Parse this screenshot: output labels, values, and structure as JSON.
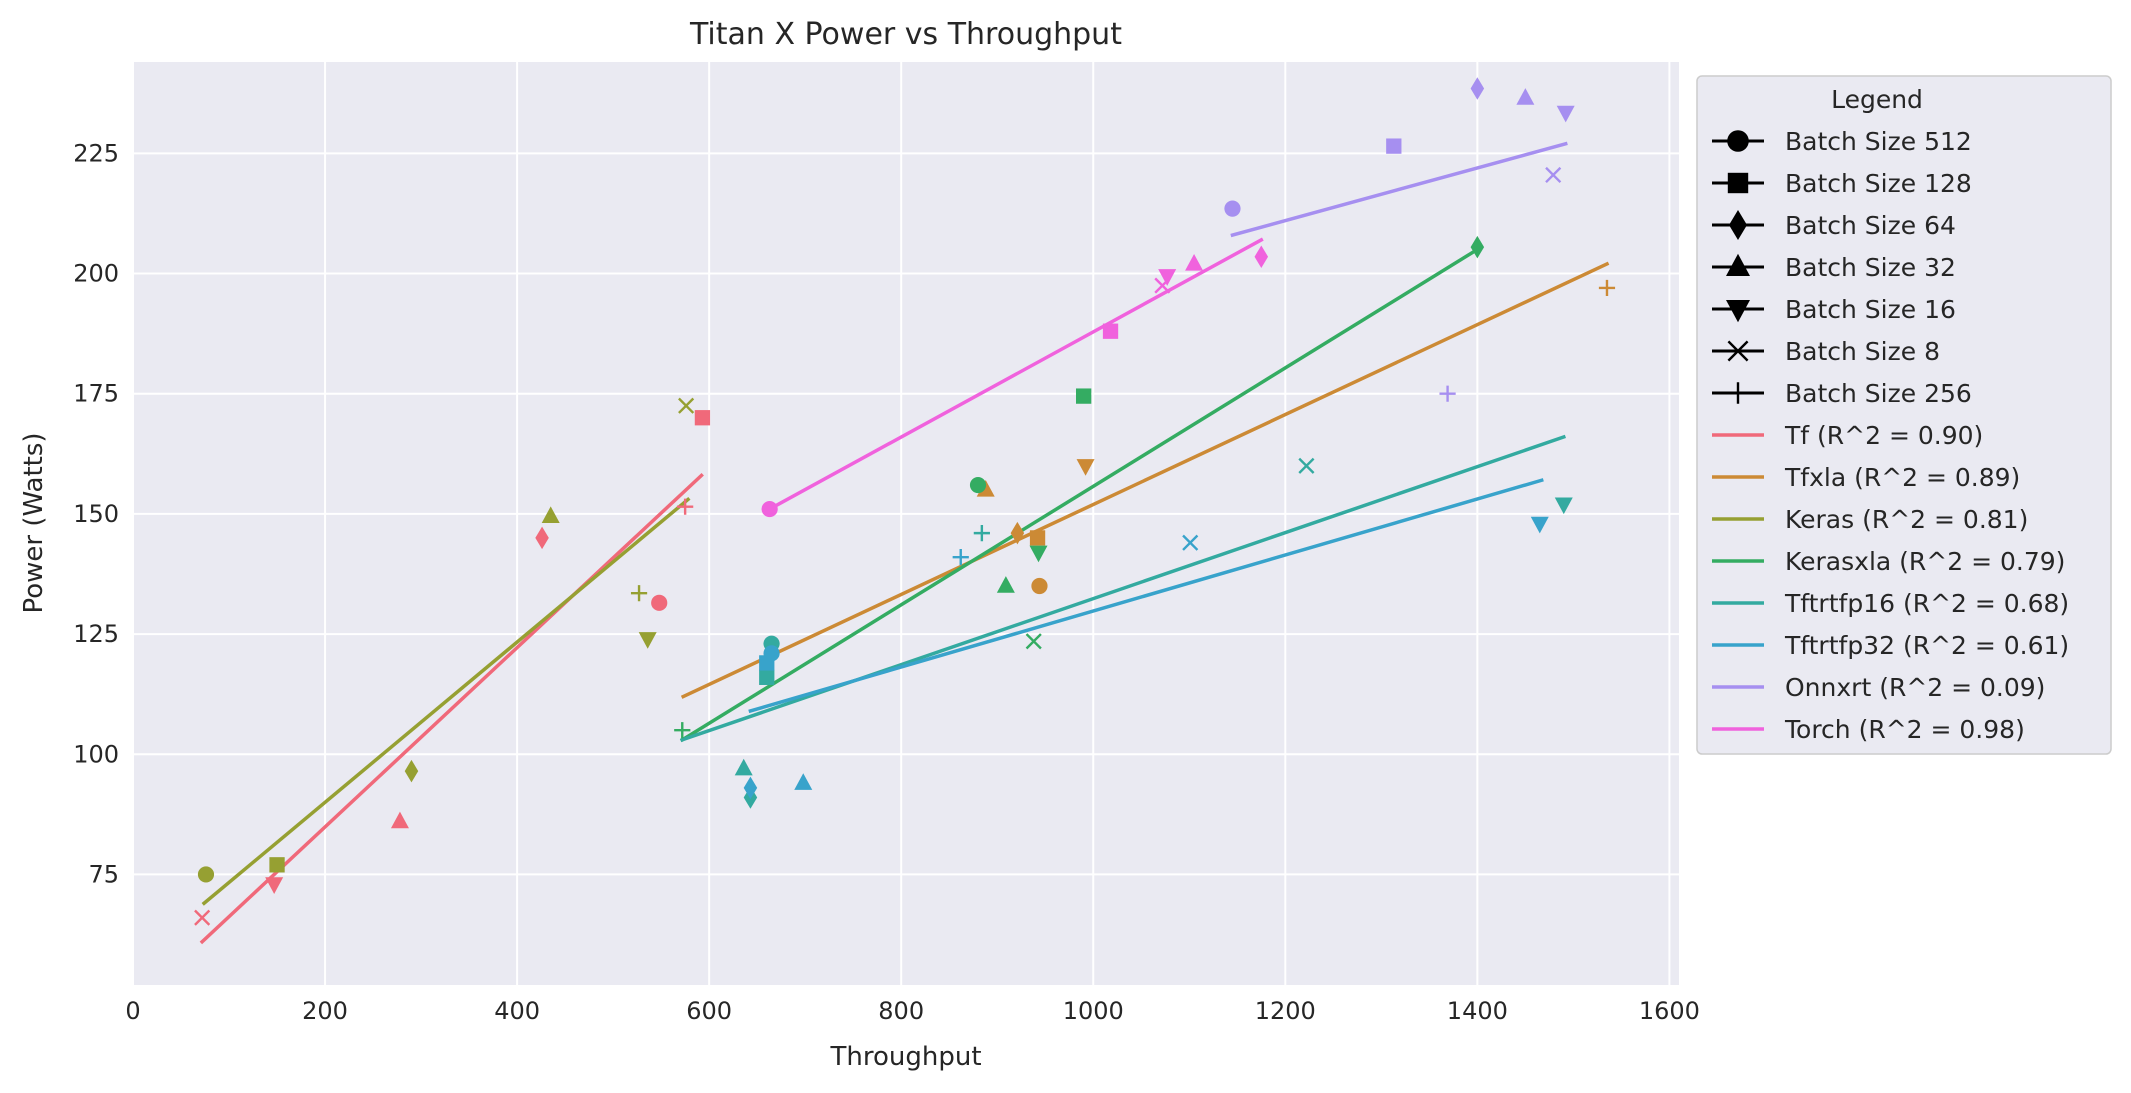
{
  "chart_data": {
    "type": "scatter",
    "title": "Titan X Power vs Throughput",
    "xlabel": "Throughput",
    "ylabel": "Power (Watts)",
    "xlim": [
      0,
      1610
    ],
    "ylim": [
      52,
      244
    ],
    "xticks": [
      0,
      200,
      400,
      600,
      800,
      1000,
      1200,
      1400,
      1600
    ],
    "yticks": [
      75,
      100,
      125,
      150,
      175,
      200,
      225
    ],
    "grid": true,
    "legend": {
      "title": "Legend",
      "placement": "outside-right",
      "marker_entries": [
        {
          "label": "Batch Size 512",
          "marker": "circle"
        },
        {
          "label": "Batch Size 128",
          "marker": "square"
        },
        {
          "label": "Batch Size 64",
          "marker": "diamond"
        },
        {
          "label": "Batch Size 32",
          "marker": "triangle-up"
        },
        {
          "label": "Batch Size 16",
          "marker": "triangle-down"
        },
        {
          "label": "Batch Size 8",
          "marker": "x"
        },
        {
          "label": "Batch Size 256",
          "marker": "plus"
        }
      ]
    },
    "series": [
      {
        "name": "Tf (R^2 = 0.90)",
        "color": "#f0697a",
        "fit": [
          [
            72,
            61
          ],
          [
            592,
            158
          ]
        ],
        "points": [
          {
            "x": 548,
            "y": 131.5,
            "marker": "circle"
          },
          {
            "x": 593,
            "y": 170,
            "marker": "square"
          },
          {
            "x": 426,
            "y": 145,
            "marker": "diamond"
          },
          {
            "x": 278,
            "y": 86,
            "marker": "triangle-up"
          },
          {
            "x": 147,
            "y": 73,
            "marker": "triangle-down"
          },
          {
            "x": 72,
            "y": 66,
            "marker": "x"
          },
          {
            "x": 575,
            "y": 151.5,
            "marker": "plus"
          }
        ]
      },
      {
        "name": "Tfxla (R^2 = 0.89)",
        "color": "#cc8a35",
        "fit": [
          [
            573,
            112
          ],
          [
            1535,
            202
          ]
        ],
        "points": [
          {
            "x": 944,
            "y": 135,
            "marker": "circle"
          },
          {
            "x": 942,
            "y": 145,
            "marker": "square"
          },
          {
            "x": 921,
            "y": 146,
            "marker": "diamond"
          },
          {
            "x": 888,
            "y": 155,
            "marker": "triangle-up"
          },
          {
            "x": 992,
            "y": 160,
            "marker": "triangle-down"
          },
          {
            "x": 1535,
            "y": 197,
            "marker": "plus"
          }
        ]
      },
      {
        "name": "Keras (R^2 = 0.81)",
        "color": "#96a032",
        "fit": [
          [
            74,
            69
          ],
          [
            578,
            153
          ]
        ],
        "points": [
          {
            "x": 76,
            "y": 75,
            "marker": "circle"
          },
          {
            "x": 150,
            "y": 77,
            "marker": "square"
          },
          {
            "x": 290,
            "y": 96.5,
            "marker": "diamond"
          },
          {
            "x": 435,
            "y": 149.5,
            "marker": "triangle-up"
          },
          {
            "x": 536,
            "y": 124,
            "marker": "triangle-down"
          },
          {
            "x": 576,
            "y": 172.5,
            "marker": "x"
          },
          {
            "x": 527,
            "y": 133.5,
            "marker": "plus"
          }
        ]
      },
      {
        "name": "Kerasxla (R^2 = 0.79)",
        "color": "#34ac62",
        "fit": [
          [
            572,
            103
          ],
          [
            1400,
            205
          ]
        ],
        "points": [
          {
            "x": 880,
            "y": 156,
            "marker": "circle"
          },
          {
            "x": 990,
            "y": 174.5,
            "marker": "square"
          },
          {
            "x": 1400,
            "y": 205.5,
            "marker": "diamond"
          },
          {
            "x": 909,
            "y": 135,
            "marker": "triangle-up"
          },
          {
            "x": 943,
            "y": 142,
            "marker": "triangle-down"
          },
          {
            "x": 938,
            "y": 123.5,
            "marker": "x"
          },
          {
            "x": 572,
            "y": 105,
            "marker": "plus"
          }
        ]
      },
      {
        "name": "Tftrtfp16 (R^2 = 0.68)",
        "color": "#33aaa0",
        "fit": [
          [
            572,
            103
          ],
          [
            1490,
            166
          ]
        ],
        "points": [
          {
            "x": 665,
            "y": 123,
            "marker": "circle"
          },
          {
            "x": 660,
            "y": 116,
            "marker": "square"
          },
          {
            "x": 643,
            "y": 91,
            "marker": "diamond"
          },
          {
            "x": 636,
            "y": 97,
            "marker": "triangle-up"
          },
          {
            "x": 1490,
            "y": 152,
            "marker": "triangle-down"
          },
          {
            "x": 1222,
            "y": 160,
            "marker": "x"
          },
          {
            "x": 884,
            "y": 146,
            "marker": "plus"
          }
        ]
      },
      {
        "name": "Tftrtfp32 (R^2 = 0.61)",
        "color": "#38a3cb",
        "fit": [
          [
            643,
            109
          ],
          [
            1467,
            157
          ]
        ],
        "points": [
          {
            "x": 665,
            "y": 121,
            "marker": "circle"
          },
          {
            "x": 660,
            "y": 119,
            "marker": "square"
          },
          {
            "x": 643,
            "y": 93,
            "marker": "diamond"
          },
          {
            "x": 698,
            "y": 94,
            "marker": "triangle-up"
          },
          {
            "x": 1465,
            "y": 148,
            "marker": "triangle-down"
          },
          {
            "x": 1101,
            "y": 144,
            "marker": "x"
          },
          {
            "x": 862,
            "y": 141,
            "marker": "plus"
          }
        ]
      },
      {
        "name": "Onnxrt (R^2 = 0.09)",
        "color": "#a68ff0",
        "fit": [
          [
            1145,
            208
          ],
          [
            1492,
            227
          ]
        ],
        "points": [
          {
            "x": 1145,
            "y": 213.5,
            "marker": "circle"
          },
          {
            "x": 1313,
            "y": 226.5,
            "marker": "square"
          },
          {
            "x": 1400,
            "y": 238.5,
            "marker": "diamond"
          },
          {
            "x": 1450,
            "y": 236.5,
            "marker": "triangle-up"
          },
          {
            "x": 1492,
            "y": 233.5,
            "marker": "triangle-down"
          },
          {
            "x": 1479,
            "y": 220.5,
            "marker": "x"
          },
          {
            "x": 1369,
            "y": 175,
            "marker": "plus"
          }
        ]
      },
      {
        "name": "Torch (R^2 = 0.98)",
        "color": "#f062dd",
        "fit": [
          [
            663,
            151
          ],
          [
            1175,
            207
          ]
        ],
        "points": [
          {
            "x": 663,
            "y": 151,
            "marker": "circle"
          },
          {
            "x": 1018,
            "y": 188,
            "marker": "square"
          },
          {
            "x": 1175,
            "y": 203.5,
            "marker": "diamond"
          },
          {
            "x": 1105,
            "y": 202,
            "marker": "triangle-up"
          },
          {
            "x": 1077,
            "y": 199.5,
            "marker": "triangle-down"
          },
          {
            "x": 1072,
            "y": 197.5,
            "marker": "x"
          }
        ]
      }
    ]
  }
}
